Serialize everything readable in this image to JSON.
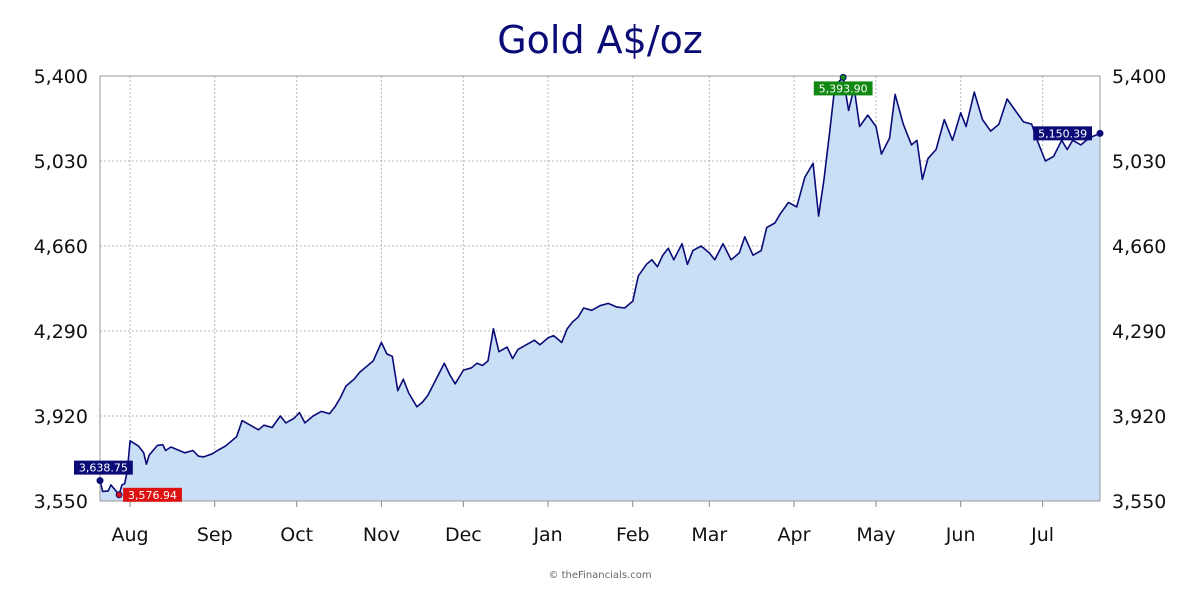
{
  "chart_data": {
    "type": "area",
    "title": "Gold A$/oz",
    "credit": "© theFinancials.com",
    "xlabel": "",
    "ylabel": "",
    "ylim": [
      3550,
      5400
    ],
    "yticks": [
      "3,550",
      "3,920",
      "4,290",
      "4,660",
      "5,030",
      "5,400"
    ],
    "ytick_values": [
      3550,
      3920,
      4290,
      4660,
      5030,
      5400
    ],
    "y_axis_sides": [
      "left",
      "right"
    ],
    "grid": true,
    "x_ticks": [
      {
        "label": "Aug",
        "date": "2025-08-01"
      },
      {
        "label": "Sep",
        "date": "2025-09-01"
      },
      {
        "label": "Oct",
        "date": "2025-10-01"
      },
      {
        "label": "Nov",
        "date": "2025-11-01"
      },
      {
        "label": "Dec",
        "date": "2025-12-01"
      },
      {
        "label": "Jan",
        "date": "2026-01-01"
      },
      {
        "label": "Feb",
        "date": "2026-02-01"
      },
      {
        "label": "Mar",
        "date": "2026-03-01"
      },
      {
        "label": "Apr",
        "date": "2026-04-01"
      },
      {
        "label": "May",
        "date": "2026-05-01"
      },
      {
        "label": "Jun",
        "date": "2026-06-01"
      },
      {
        "label": "Jul",
        "date": "2026-07-01"
      }
    ],
    "x_range": [
      "2025-07-21",
      "2026-07-22"
    ],
    "annotations": [
      {
        "label": "3,638.75",
        "date": "2025-07-21",
        "value": 3638.75,
        "kind": "start",
        "color": "#0b0b78"
      },
      {
        "label": "3,576.94",
        "date": "2025-07-28",
        "value": 3576.94,
        "kind": "low",
        "color": "#dd1111"
      },
      {
        "label": "5,393.90",
        "date": "2026-04-19",
        "value": 5393.9,
        "kind": "high",
        "color": "#118811"
      },
      {
        "label": "5,150.39",
        "date": "2026-07-22",
        "value": 5150.39,
        "kind": "last",
        "color": "#0b0b78"
      }
    ],
    "colors": {
      "line": "#0b0b78",
      "fill": "#c9dff5",
      "grid": "#b8b8b8"
    },
    "series": [
      {
        "values": [
          [
            "2025-07-21",
            3638
          ],
          [
            "2025-07-22",
            3592
          ],
          [
            "2025-07-24",
            3594
          ],
          [
            "2025-07-25",
            3620
          ],
          [
            "2025-07-28",
            3577
          ],
          [
            "2025-07-29",
            3620
          ],
          [
            "2025-07-30",
            3625
          ],
          [
            "2025-07-31",
            3680
          ],
          [
            "2025-08-01",
            3812
          ],
          [
            "2025-08-04",
            3790
          ],
          [
            "2025-08-06",
            3760
          ],
          [
            "2025-08-07",
            3710
          ],
          [
            "2025-08-08",
            3750
          ],
          [
            "2025-08-11",
            3792
          ],
          [
            "2025-08-13",
            3795
          ],
          [
            "2025-08-14",
            3770
          ],
          [
            "2025-08-16",
            3785
          ],
          [
            "2025-08-19",
            3770
          ],
          [
            "2025-08-21",
            3760
          ],
          [
            "2025-08-24",
            3770
          ],
          [
            "2025-08-26",
            3745
          ],
          [
            "2025-08-28",
            3742
          ],
          [
            "2025-08-31",
            3755
          ],
          [
            "2025-09-02",
            3770
          ],
          [
            "2025-09-05",
            3790
          ],
          [
            "2025-09-09",
            3830
          ],
          [
            "2025-09-11",
            3900
          ],
          [
            "2025-09-14",
            3880
          ],
          [
            "2025-09-17",
            3860
          ],
          [
            "2025-09-19",
            3880
          ],
          [
            "2025-09-22",
            3870
          ],
          [
            "2025-09-25",
            3920
          ],
          [
            "2025-09-27",
            3890
          ],
          [
            "2025-09-30",
            3910
          ],
          [
            "2025-10-02",
            3935
          ],
          [
            "2025-10-04",
            3890
          ],
          [
            "2025-10-07",
            3920
          ],
          [
            "2025-10-10",
            3940
          ],
          [
            "2025-10-13",
            3930
          ],
          [
            "2025-10-15",
            3960
          ],
          [
            "2025-10-17",
            4000
          ],
          [
            "2025-10-19",
            4050
          ],
          [
            "2025-10-22",
            4080
          ],
          [
            "2025-10-24",
            4110
          ],
          [
            "2025-10-26",
            4130
          ],
          [
            "2025-10-29",
            4160
          ],
          [
            "2025-11-01",
            4240
          ],
          [
            "2025-11-03",
            4190
          ],
          [
            "2025-11-05",
            4180
          ],
          [
            "2025-11-07",
            4030
          ],
          [
            "2025-11-09",
            4080
          ],
          [
            "2025-11-11",
            4020
          ],
          [
            "2025-11-14",
            3960
          ],
          [
            "2025-11-16",
            3980
          ],
          [
            "2025-11-18",
            4010
          ],
          [
            "2025-11-21",
            4080
          ],
          [
            "2025-11-24",
            4150
          ],
          [
            "2025-11-26",
            4100
          ],
          [
            "2025-11-28",
            4060
          ],
          [
            "2025-12-01",
            4120
          ],
          [
            "2025-12-04",
            4130
          ],
          [
            "2025-12-06",
            4150
          ],
          [
            "2025-12-08",
            4140
          ],
          [
            "2025-12-10",
            4160
          ],
          [
            "2025-12-12",
            4300
          ],
          [
            "2025-12-14",
            4200
          ],
          [
            "2025-12-17",
            4220
          ],
          [
            "2025-12-19",
            4170
          ],
          [
            "2025-12-21",
            4210
          ],
          [
            "2025-12-24",
            4230
          ],
          [
            "2025-12-27",
            4250
          ],
          [
            "2025-12-29",
            4230
          ],
          [
            "2026-01-01",
            4260
          ],
          [
            "2026-01-03",
            4270
          ],
          [
            "2026-01-06",
            4240
          ],
          [
            "2026-01-08",
            4300
          ],
          [
            "2026-01-10",
            4330
          ],
          [
            "2026-01-12",
            4350
          ],
          [
            "2026-01-14",
            4390
          ],
          [
            "2026-01-17",
            4380
          ],
          [
            "2026-01-20",
            4400
          ],
          [
            "2026-01-23",
            4410
          ],
          [
            "2026-01-26",
            4395
          ],
          [
            "2026-01-29",
            4390
          ],
          [
            "2026-02-01",
            4420
          ],
          [
            "2026-02-03",
            4530
          ],
          [
            "2026-02-06",
            4580
          ],
          [
            "2026-02-08",
            4600
          ],
          [
            "2026-02-10",
            4570
          ],
          [
            "2026-02-12",
            4620
          ],
          [
            "2026-02-14",
            4650
          ],
          [
            "2026-02-16",
            4600
          ],
          [
            "2026-02-19",
            4670
          ],
          [
            "2026-02-21",
            4580
          ],
          [
            "2026-02-23",
            4640
          ],
          [
            "2026-02-26",
            4660
          ],
          [
            "2026-03-01",
            4630
          ],
          [
            "2026-03-03",
            4600
          ],
          [
            "2026-03-06",
            4670
          ],
          [
            "2026-03-09",
            4600
          ],
          [
            "2026-03-12",
            4630
          ],
          [
            "2026-03-14",
            4700
          ],
          [
            "2026-03-17",
            4620
          ],
          [
            "2026-03-20",
            4640
          ],
          [
            "2026-03-22",
            4740
          ],
          [
            "2026-03-25",
            4760
          ],
          [
            "2026-03-27",
            4800
          ],
          [
            "2026-03-30",
            4850
          ],
          [
            "2026-04-02",
            4830
          ],
          [
            "2026-04-05",
            4960
          ],
          [
            "2026-04-08",
            5020
          ],
          [
            "2026-04-10",
            4790
          ],
          [
            "2026-04-12",
            4950
          ],
          [
            "2026-04-14",
            5150
          ],
          [
            "2026-04-16",
            5360
          ],
          [
            "2026-04-19",
            5394
          ],
          [
            "2026-04-21",
            5250
          ],
          [
            "2026-04-23",
            5350
          ],
          [
            "2026-04-25",
            5180
          ],
          [
            "2026-04-28",
            5230
          ],
          [
            "2026-05-01",
            5180
          ],
          [
            "2026-05-03",
            5060
          ],
          [
            "2026-05-06",
            5130
          ],
          [
            "2026-05-08",
            5320
          ],
          [
            "2026-05-11",
            5190
          ],
          [
            "2026-05-14",
            5100
          ],
          [
            "2026-05-16",
            5120
          ],
          [
            "2026-05-18",
            4950
          ],
          [
            "2026-05-20",
            5040
          ],
          [
            "2026-05-23",
            5080
          ],
          [
            "2026-05-26",
            5210
          ],
          [
            "2026-05-29",
            5120
          ],
          [
            "2026-06-01",
            5240
          ],
          [
            "2026-06-03",
            5180
          ],
          [
            "2026-06-06",
            5330
          ],
          [
            "2026-06-09",
            5210
          ],
          [
            "2026-06-12",
            5160
          ],
          [
            "2026-06-15",
            5190
          ],
          [
            "2026-06-18",
            5300
          ],
          [
            "2026-06-21",
            5250
          ],
          [
            "2026-06-24",
            5200
          ],
          [
            "2026-06-27",
            5190
          ],
          [
            "2026-06-29",
            5120
          ],
          [
            "2026-07-02",
            5030
          ],
          [
            "2026-07-05",
            5050
          ],
          [
            "2026-07-08",
            5120
          ],
          [
            "2026-07-10",
            5080
          ],
          [
            "2026-07-12",
            5120
          ],
          [
            "2026-07-15",
            5100
          ],
          [
            "2026-07-18",
            5130
          ],
          [
            "2026-07-22",
            5150
          ]
        ]
      }
    ]
  }
}
